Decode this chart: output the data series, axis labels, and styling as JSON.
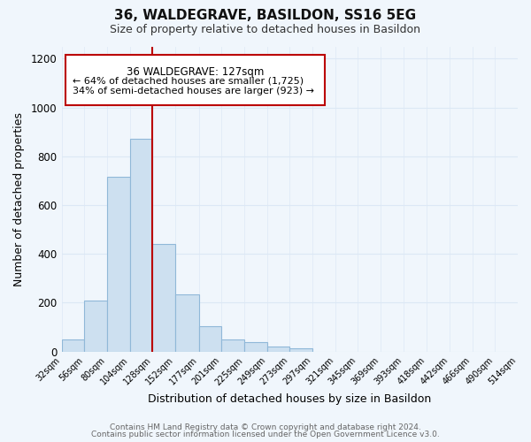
{
  "title": "36, WALDEGRAVE, BASILDON, SS16 5EG",
  "subtitle": "Size of property relative to detached houses in Basildon",
  "xlabel": "Distribution of detached houses by size in Basildon",
  "ylabel": "Number of detached properties",
  "footer_line1": "Contains HM Land Registry data © Crown copyright and database right 2024.",
  "footer_line2": "Contains public sector information licensed under the Open Government Licence v3.0.",
  "annotation_line1": "36 WALDEGRAVE: 127sqm",
  "annotation_line2": "← 64% of detached houses are smaller (1,725)",
  "annotation_line3": "34% of semi-detached houses are larger (923) →",
  "property_line_x": 128,
  "bar_edges": [
    32,
    56,
    80,
    104,
    128,
    152,
    177,
    201,
    225,
    249,
    273,
    297,
    321,
    345,
    369,
    393,
    418,
    442,
    466,
    490,
    514
  ],
  "bar_heights": [
    50,
    210,
    715,
    870,
    440,
    235,
    105,
    50,
    40,
    20,
    13,
    0,
    0,
    0,
    0,
    0,
    0,
    0,
    0,
    0
  ],
  "bar_color": "#cde0f0",
  "bar_edge_color": "#90b8d8",
  "line_color": "#bb0000",
  "annotation_box_color": "#ffffff",
  "annotation_box_edge": "#bb0000",
  "grid_color": "#dce8f5",
  "background_color": "#f0f6fc",
  "ylim": [
    0,
    1250
  ],
  "xlim": [
    32,
    514
  ],
  "yticks": [
    0,
    200,
    400,
    600,
    800,
    1000,
    1200
  ]
}
